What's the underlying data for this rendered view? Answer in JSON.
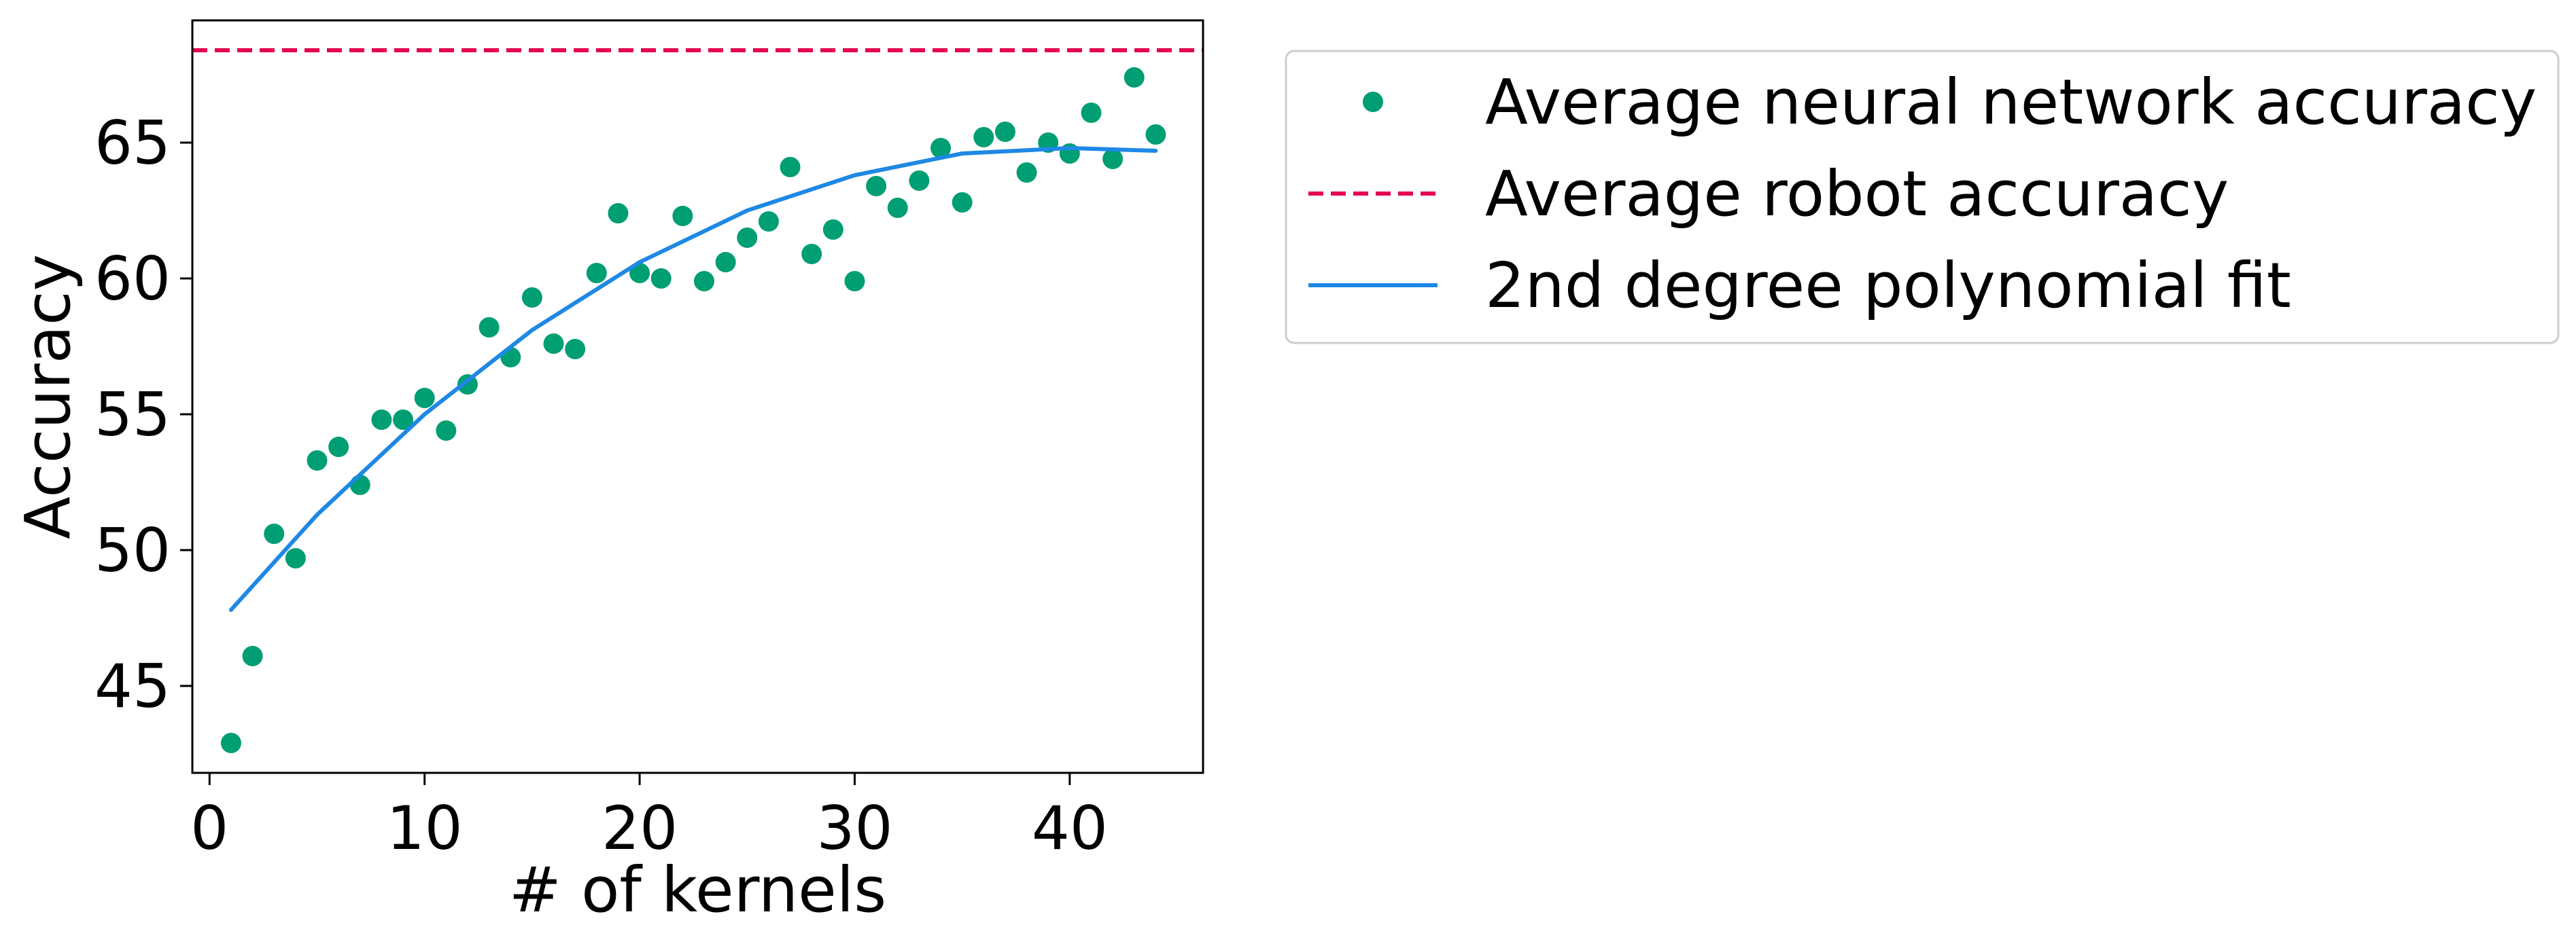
{
  "chart_data": {
    "type": "scatter",
    "title": "",
    "xlabel": "# of kernels",
    "ylabel": "Accuracy",
    "xlim": [
      -0.8,
      46.2
    ],
    "ylim": [
      41.8,
      69.5
    ],
    "xticks": [
      0,
      10,
      20,
      30,
      40
    ],
    "yticks": [
      45,
      50,
      55,
      60,
      65
    ],
    "grid": false,
    "legend_position": "outside-top-right",
    "series": [
      {
        "name": "Average neural network accuracy",
        "kind": "scatter",
        "color": "#009e73",
        "x": [
          1,
          2,
          3,
          4,
          5,
          6,
          7,
          8,
          9,
          10,
          11,
          12,
          13,
          14,
          15,
          16,
          17,
          18,
          19,
          20,
          21,
          22,
          23,
          24,
          25,
          26,
          27,
          28,
          29,
          30,
          31,
          32,
          33,
          34,
          35,
          36,
          37,
          38,
          39,
          40,
          41,
          42,
          43,
          44
        ],
        "y": [
          42.9,
          46.1,
          50.6,
          49.7,
          53.3,
          53.8,
          52.4,
          54.8,
          54.8,
          55.6,
          54.4,
          56.1,
          58.2,
          57.1,
          59.3,
          57.6,
          57.4,
          60.2,
          62.4,
          60.2,
          60.0,
          62.3,
          59.9,
          60.6,
          61.5,
          62.1,
          64.1,
          60.9,
          61.8,
          59.9,
          63.4,
          62.6,
          63.6,
          64.8,
          62.8,
          65.2,
          65.4,
          63.9,
          65.0,
          64.6,
          66.1,
          64.4,
          67.4,
          65.3
        ]
      },
      {
        "name": "Average robot accuracy",
        "kind": "hline",
        "color": "#e4004f",
        "y": 68.4
      },
      {
        "name": "2nd degree polynomial fit",
        "kind": "line",
        "color": "#1e88e5",
        "x": [
          1,
          5,
          10,
          15,
          20,
          25,
          30,
          35,
          40,
          44
        ],
        "y": [
          47.8,
          51.3,
          55.0,
          58.1,
          60.6,
          62.5,
          63.8,
          64.6,
          64.8,
          64.7
        ]
      }
    ]
  }
}
